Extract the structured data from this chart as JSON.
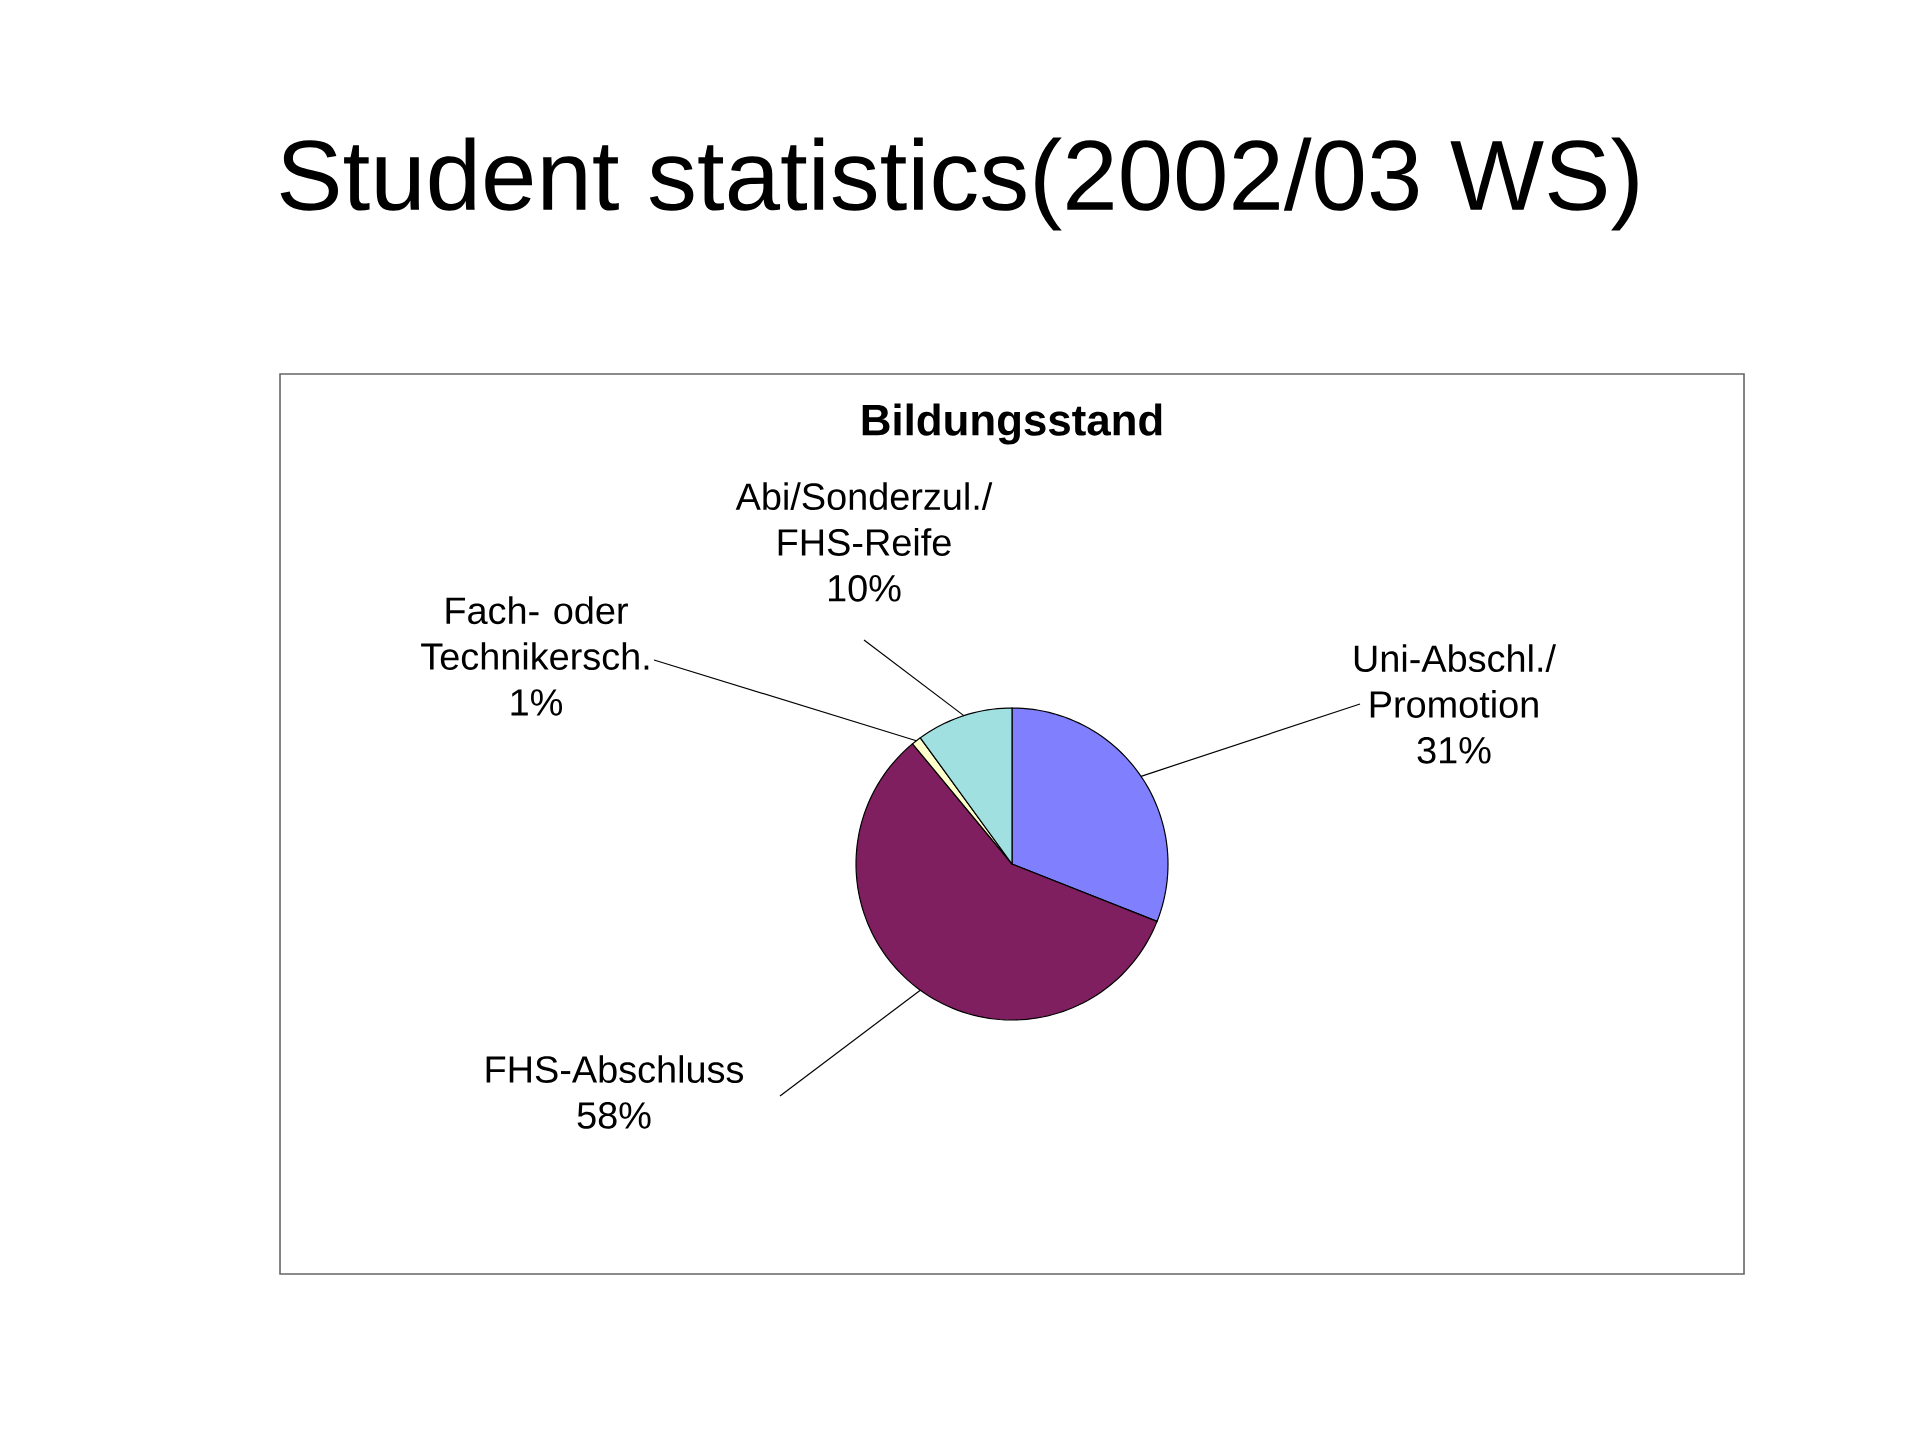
{
  "chart_data": {
    "type": "pie",
    "title": "Student statistics(2002/03 WS)",
    "subtitle": "Bildungsstand",
    "categories": [
      "Uni-Abschl./ Promotion",
      "FHS-Abschluss",
      "Fach- oder Technikersch.",
      "Abi/Sonderzul./ FHS-Reife"
    ],
    "values": [
      31,
      58,
      1,
      10
    ],
    "value_labels": [
      "31%",
      "58%",
      "1%",
      "10%"
    ],
    "colors": [
      "#8080ff",
      "#7f1f5f",
      "#ffffcc",
      "#a0e0e0"
    ]
  }
}
